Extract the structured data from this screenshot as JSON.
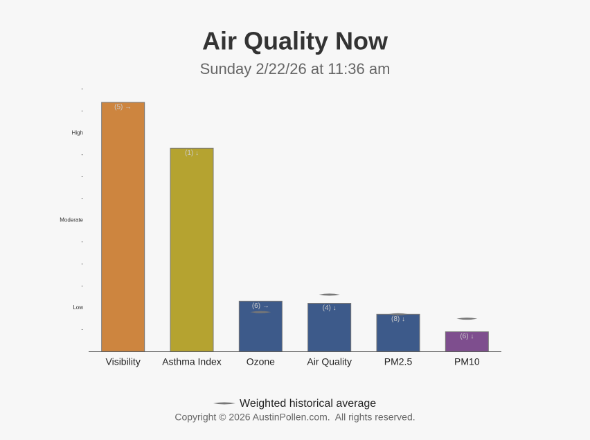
{
  "chart_data": {
    "type": "bar",
    "title": "Air Quality Now",
    "subtitle": "Sunday 2/22/26 at 11:36 am",
    "categories": [
      "Visibility",
      "Asthma Index",
      "Ozone",
      "Air Quality",
      "PM2.5",
      "PM10"
    ],
    "values": [
      11.4,
      9.3,
      2.3,
      2.2,
      1.7,
      0.9
    ],
    "colors": [
      "#cd853f",
      "#b5a330",
      "#3d5a8a",
      "#3d5a8a",
      "#3d5a8a",
      "#7e4e8e"
    ],
    "bar_labels": [
      "(5) →",
      "(1) ↓",
      "(6) →",
      "(4) ↓",
      "(8) ↓",
      "(6) ↓"
    ],
    "average": {
      "name": "Weighted historical average",
      "color": "#777777",
      "values": [
        null,
        null,
        1.8,
        2.6,
        1.7,
        1.5
      ]
    },
    "ylim": [
      0,
      12
    ],
    "yticks": [
      {
        "value": 1,
        "label": "-"
      },
      {
        "value": 2,
        "label": "Low"
      },
      {
        "value": 3,
        "label": "-"
      },
      {
        "value": 4,
        "label": "-"
      },
      {
        "value": 5,
        "label": "-"
      },
      {
        "value": 6,
        "label": "Moderate"
      },
      {
        "value": 7,
        "label": "-"
      },
      {
        "value": 8,
        "label": "-"
      },
      {
        "value": 9,
        "label": "-"
      },
      {
        "value": 10,
        "label": "High"
      },
      {
        "value": 11,
        "label": "-"
      },
      {
        "value": 12,
        "label": "-"
      }
    ],
    "copyright": "Copyright © 2026 AustinPollen.com.  All rights reserved."
  }
}
